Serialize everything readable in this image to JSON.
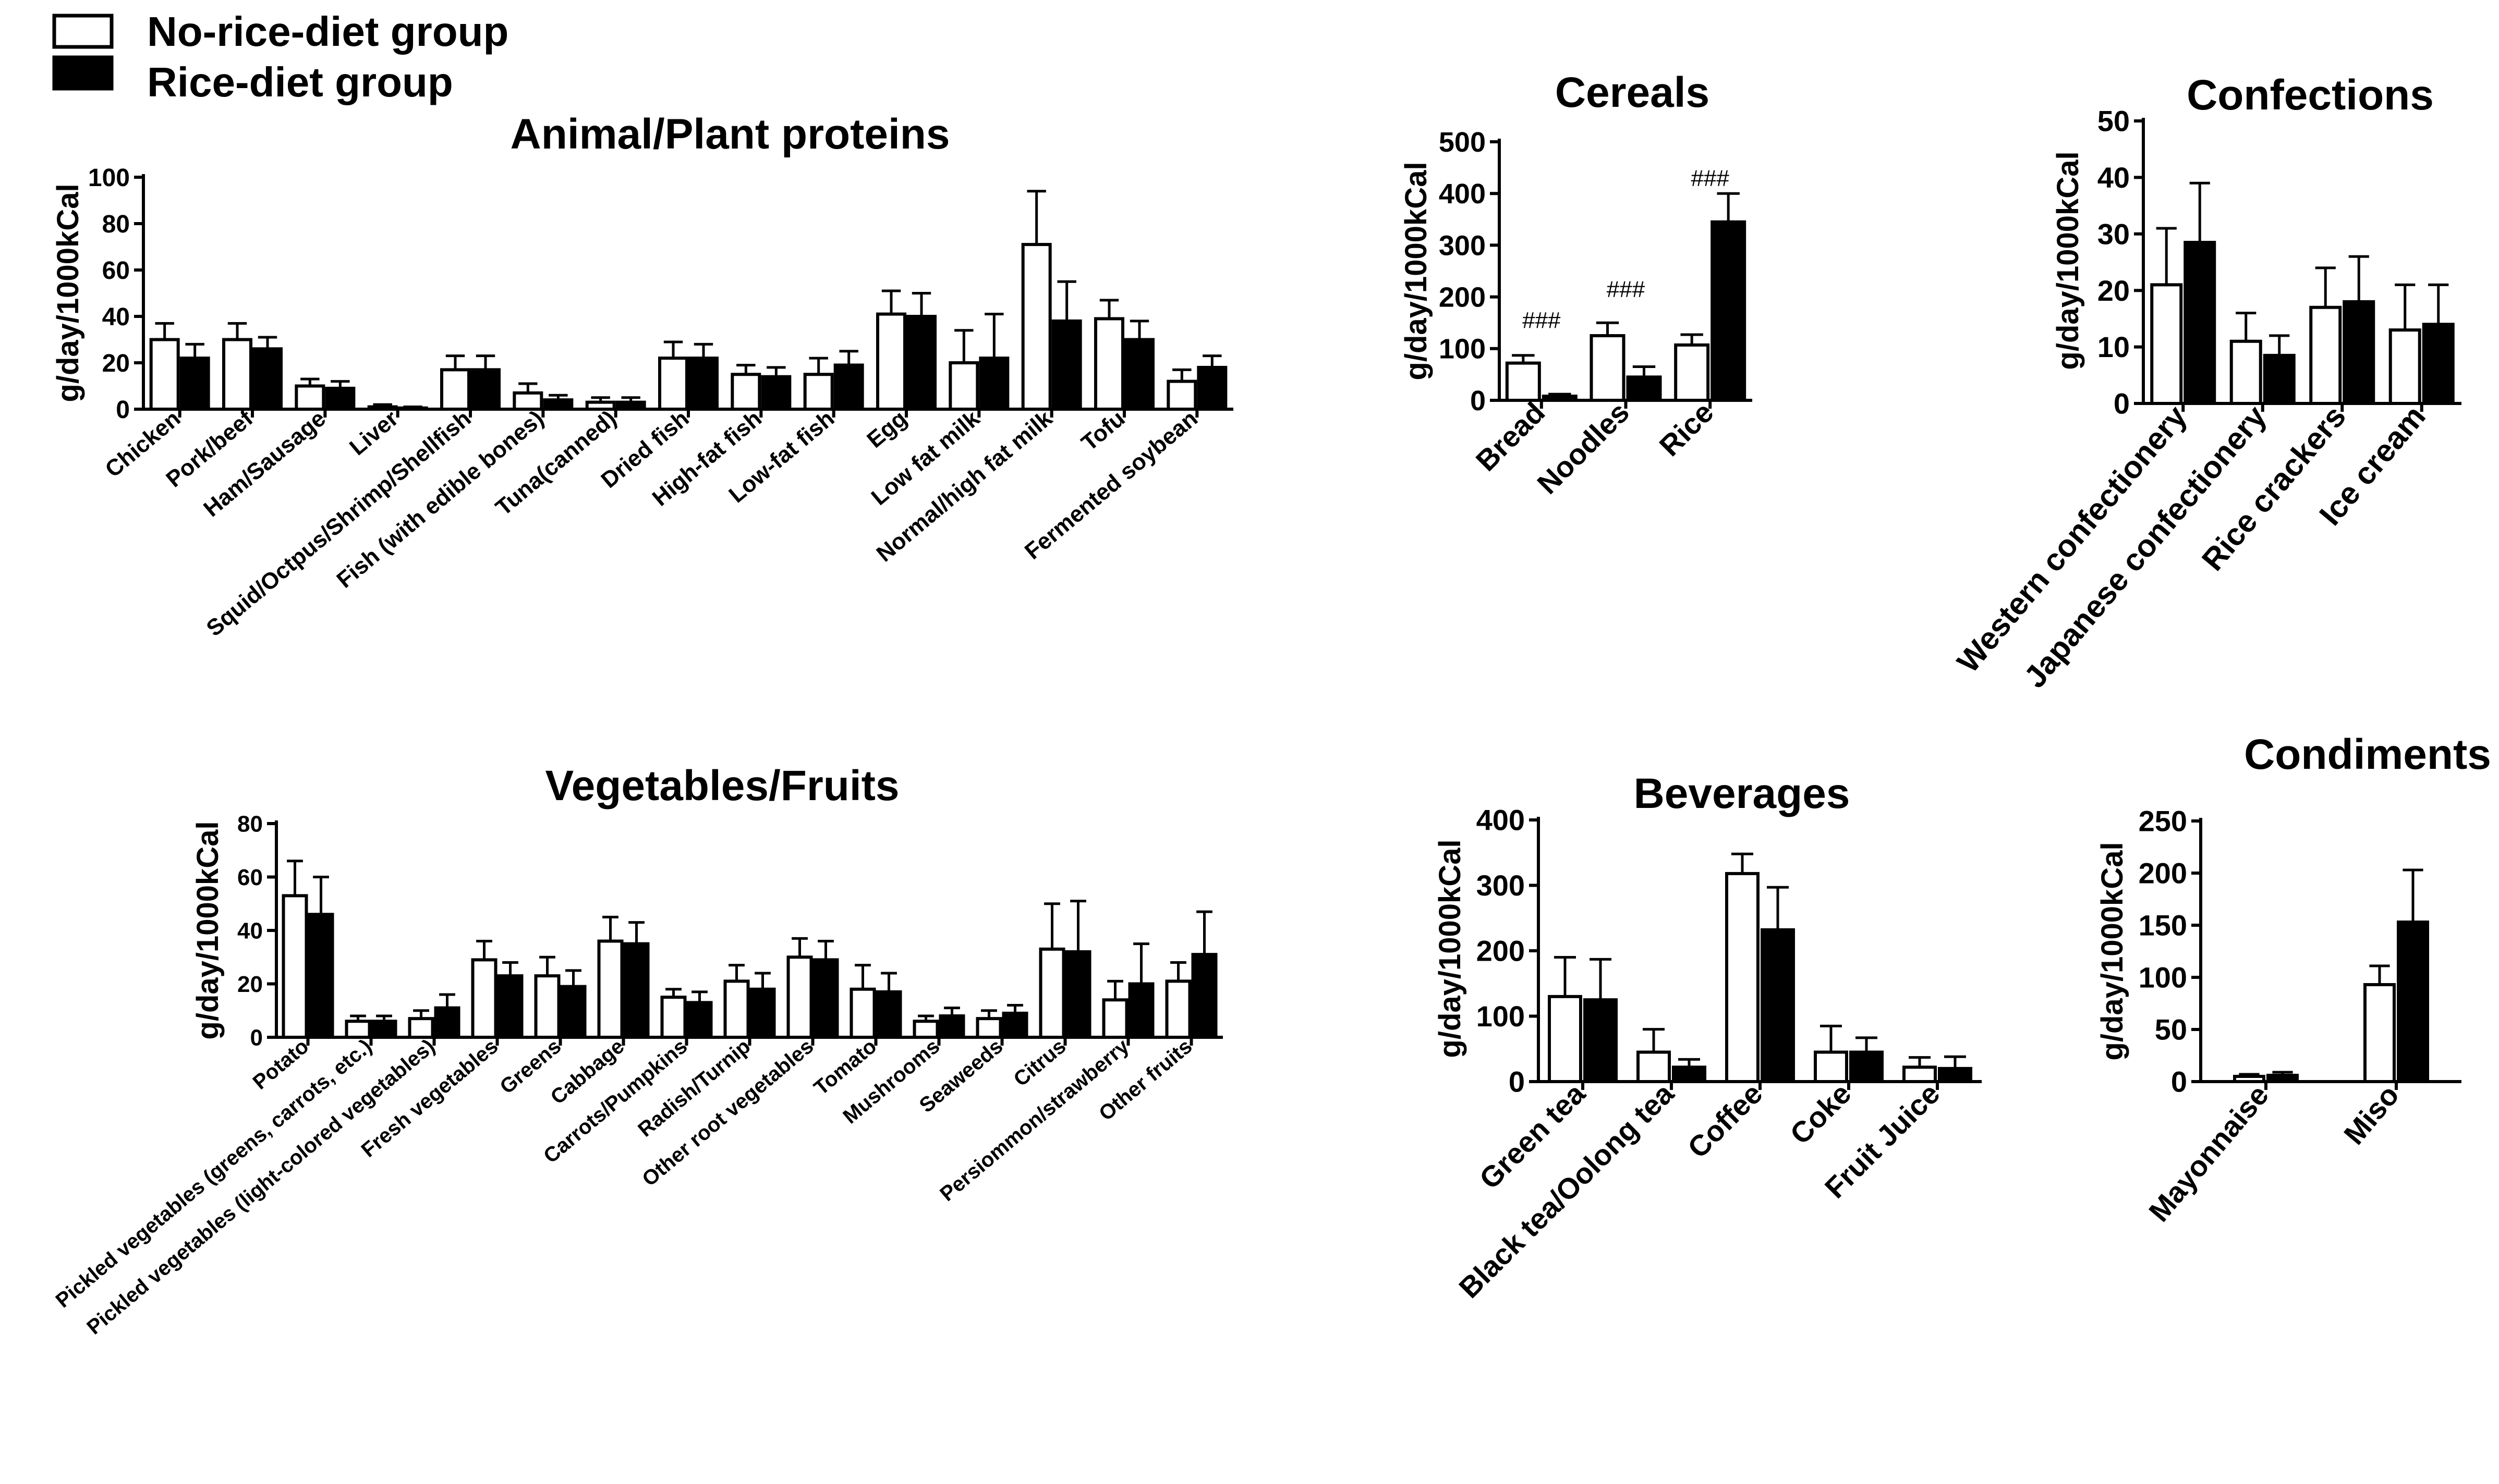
{
  "legend": {
    "items": [
      {
        "label": "No-rice-diet group",
        "fill": "#ffffff"
      },
      {
        "label": "Rice-diet group",
        "fill": "#000000"
      }
    ]
  },
  "chart_data": [
    {
      "id": "animal",
      "type": "bar",
      "title": "Animal/Plant proteins",
      "ylabel": "g/day/1000kCal",
      "xlabel": "",
      "ylim": [
        0,
        100
      ],
      "yticks": [
        0,
        20,
        40,
        60,
        80,
        100
      ],
      "categories": [
        "Chicken",
        "Pork/beef",
        "Ham/Sausage",
        "Liver",
        "Squid/Octpus/Shrimp/Shellfish",
        "Fish (with edible bones)",
        "Tuna(canned)",
        "Dried fish",
        "High-fat fish",
        "Low-fat fish",
        "Egg",
        "Low fat milk",
        "Normal/high fat milk",
        "Tofu",
        "Fermented soybean"
      ],
      "series": [
        {
          "name": "No-rice-diet group",
          "values": [
            30,
            30,
            10,
            1,
            17,
            7,
            3,
            22,
            15,
            15,
            41,
            20,
            71,
            39,
            12
          ],
          "errors": [
            7,
            7,
            3,
            1,
            6,
            4,
            2,
            7,
            4,
            7,
            10,
            14,
            23,
            8,
            5
          ]
        },
        {
          "name": "Rice-diet group",
          "values": [
            22,
            26,
            9,
            0.5,
            17,
            4,
            3,
            22,
            14,
            19,
            40,
            22,
            38,
            30,
            18
          ],
          "errors": [
            6,
            5,
            3,
            0.5,
            6,
            2,
            2,
            6,
            4,
            6,
            10,
            19,
            17,
            8,
            5
          ]
        }
      ],
      "annotations": []
    },
    {
      "id": "cereals",
      "type": "bar",
      "title": "Cereals",
      "ylabel": "g/day/1000kCal",
      "xlabel": "",
      "ylim": [
        0,
        500
      ],
      "yticks": [
        0,
        100,
        200,
        300,
        400,
        500
      ],
      "categories": [
        "Bread",
        "Noodles",
        "Rice"
      ],
      "series": [
        {
          "name": "No-rice-diet group",
          "values": [
            72,
            125,
            107
          ],
          "errors": [
            15,
            25,
            20
          ]
        },
        {
          "name": "Rice-diet group",
          "values": [
            8,
            45,
            345
          ],
          "errors": [
            4,
            20,
            55
          ]
        }
      ],
      "annotations": [
        {
          "category": "Bread",
          "text": "###",
          "value": 140
        },
        {
          "category": "Noodles",
          "text": "###",
          "value": 200
        },
        {
          "category": "Rice",
          "text": "###",
          "value": 415
        }
      ]
    },
    {
      "id": "confections",
      "type": "bar",
      "title": "Confections",
      "ylabel": "g/day/1000kCal",
      "xlabel": "",
      "ylim": [
        0,
        50
      ],
      "yticks": [
        0,
        10,
        20,
        30,
        40,
        50
      ],
      "categories": [
        "Western confectionery",
        "Japanese confectionery",
        "Rice crackers",
        "Ice cream"
      ],
      "series": [
        {
          "name": "No-rice-diet group",
          "values": [
            21,
            11,
            17,
            13
          ],
          "errors": [
            10,
            5,
            7,
            8
          ]
        },
        {
          "name": "Rice-diet group",
          "values": [
            28.5,
            8.5,
            18,
            14
          ],
          "errors": [
            10.5,
            3.5,
            8,
            7
          ]
        }
      ],
      "annotations": []
    },
    {
      "id": "vegetables",
      "type": "bar",
      "title": "Vegetables/Fruits",
      "ylabel": "g/day/1000kCal",
      "xlabel": "",
      "ylim": [
        0,
        80
      ],
      "yticks": [
        0,
        20,
        40,
        60,
        80
      ],
      "categories": [
        "Potato",
        "Pickled vegetables (greens, carrots, etc.)",
        "Pickled vegetables (light-colored vegetables)",
        "Fresh vegetables",
        "Greens",
        "Cabbage",
        "Carrots/Pumpkins",
        "Radish/Turnip",
        "Other root vegetables",
        "Tomato",
        "Mushrooms",
        "Seaweeds",
        "Citrus",
        "Persiommon/strawberry",
        "Other fruits"
      ],
      "series": [
        {
          "name": "No-rice-diet group",
          "values": [
            53,
            6,
            7,
            29,
            23,
            36,
            15,
            21,
            30,
            18,
            6,
            7,
            33,
            14,
            21
          ],
          "errors": [
            13,
            2,
            3,
            7,
            7,
            9,
            3,
            6,
            7,
            9,
            2,
            3,
            17,
            7,
            7
          ]
        },
        {
          "name": "Rice-diet group",
          "values": [
            46,
            6,
            11,
            23,
            19,
            35,
            13,
            18,
            29,
            17,
            8,
            9,
            32,
            20,
            31
          ],
          "errors": [
            14,
            2,
            5,
            5,
            6,
            8,
            4,
            6,
            7,
            7,
            3,
            3,
            19,
            15,
            16
          ]
        }
      ],
      "annotations": []
    },
    {
      "id": "beverages",
      "type": "bar",
      "title": "Beverages",
      "ylabel": "g/day/1000kCal",
      "xlabel": "",
      "ylim": [
        0,
        400
      ],
      "yticks": [
        0,
        100,
        200,
        300,
        400
      ],
      "categories": [
        "Green tea",
        "Black tea/Oolong tea",
        "Coffee",
        "Coke",
        "Fruit Juice"
      ],
      "series": [
        {
          "name": "No-rice-diet group",
          "values": [
            130,
            45,
            318,
            45,
            22
          ],
          "errors": [
            60,
            35,
            30,
            40,
            15
          ]
        },
        {
          "name": "Rice-diet group",
          "values": [
            125,
            22,
            232,
            45,
            20
          ],
          "errors": [
            62,
            12,
            65,
            22,
            18
          ]
        }
      ],
      "annotations": []
    },
    {
      "id": "condiments",
      "type": "bar",
      "title": "Condiments",
      "ylabel": "g/day/1000kCal",
      "xlabel": "",
      "ylim": [
        0,
        250
      ],
      "yticks": [
        0,
        50,
        100,
        150,
        200,
        250
      ],
      "categories": [
        "Mayonnaise",
        "Miso"
      ],
      "series": [
        {
          "name": "No-rice-diet group",
          "values": [
            5,
            93
          ],
          "errors": [
            2,
            18
          ]
        },
        {
          "name": "Rice-diet group",
          "values": [
            6,
            153
          ],
          "errors": [
            3,
            50
          ]
        }
      ],
      "annotations": []
    }
  ]
}
